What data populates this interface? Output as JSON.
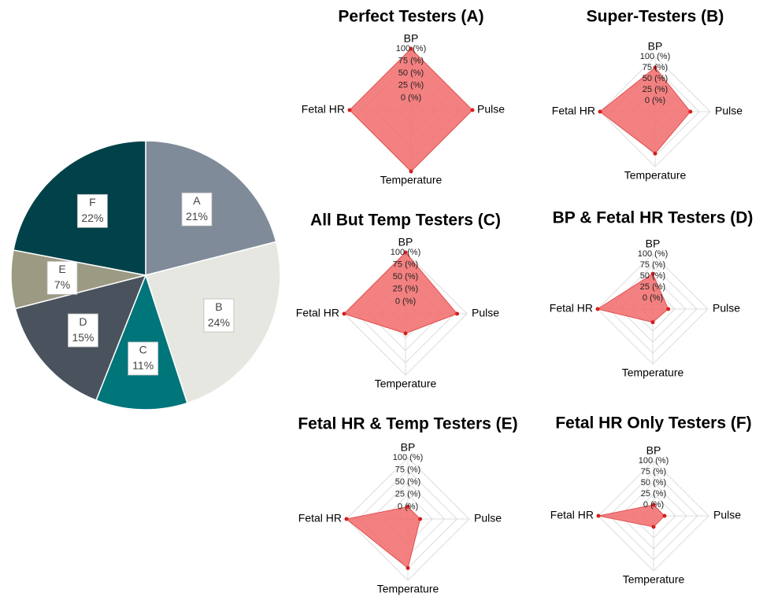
{
  "chart_data": [
    {
      "type": "pie",
      "categories": [
        "A",
        "B",
        "C",
        "D",
        "E",
        "F"
      ],
      "values": [
        21,
        24,
        11,
        15,
        7,
        22
      ],
      "value_labels": [
        "21%",
        "24%",
        "11%",
        "15%",
        "7%",
        "22%"
      ],
      "colors": [
        "#7f8b98",
        "#e7e7e2",
        "#00757a",
        "#4a535d",
        "#9b9a82",
        "#01424a"
      ]
    },
    {
      "type": "radar",
      "title": "Perfect Testers (A)",
      "categories": [
        "BP",
        "Pulse",
        "Temperature",
        "Fetal HR"
      ],
      "values": [
        100,
        100,
        100,
        100
      ],
      "color": "#f26b6b",
      "ylim": [
        -25,
        100
      ],
      "yticks": [
        {
          "value": 0,
          "label": "0 (%)"
        },
        {
          "value": 25,
          "label": "25 (%)"
        },
        {
          "value": 50,
          "label": "50 (%)"
        },
        {
          "value": 75,
          "label": "75 (%)"
        },
        {
          "value": 100,
          "label": "100 (%)"
        }
      ]
    },
    {
      "type": "radar",
      "title": "Super-Testers (B)",
      "categories": [
        "BP",
        "Pulse",
        "Temperature",
        "Fetal HR"
      ],
      "values": [
        75,
        55,
        70,
        100
      ],
      "color": "#f26b6b",
      "ylim": [
        -25,
        100
      ],
      "yticks": [
        {
          "value": 0,
          "label": "0 (%)"
        },
        {
          "value": 25,
          "label": "25 (%)"
        },
        {
          "value": 50,
          "label": "50 (%)"
        },
        {
          "value": 75,
          "label": "75 (%)"
        },
        {
          "value": 100,
          "label": "100 (%)"
        }
      ]
    },
    {
      "type": "radar",
      "title": "All But Temp Testers (C)",
      "categories": [
        "BP",
        "Pulse",
        "Temperature",
        "Fetal HR"
      ],
      "values": [
        100,
        80,
        15,
        100
      ],
      "color": "#f26b6b",
      "ylim": [
        -25,
        100
      ],
      "yticks": [
        {
          "value": 0,
          "label": "0 (%)"
        },
        {
          "value": 25,
          "label": "25 (%)"
        },
        {
          "value": 50,
          "label": "50 (%)"
        },
        {
          "value": 75,
          "label": "75 (%)"
        },
        {
          "value": 100,
          "label": "100 (%)"
        }
      ]
    },
    {
      "type": "radar",
      "title": "BP & Fetal HR Testers (D)",
      "categories": [
        "BP",
        "Pulse",
        "Temperature",
        "Fetal HR"
      ],
      "values": [
        55,
        10,
        5,
        100
      ],
      "color": "#f26b6b",
      "ylim": [
        -25,
        100
      ],
      "yticks": [
        {
          "value": 0,
          "label": "0 (%)"
        },
        {
          "value": 25,
          "label": "25 (%)"
        },
        {
          "value": 50,
          "label": "50 (%)"
        },
        {
          "value": 75,
          "label": "75 (%)"
        },
        {
          "value": 100,
          "label": "100 (%)"
        }
      ]
    },
    {
      "type": "radar",
      "title": "Fetal HR & Temp Testers (E)",
      "categories": [
        "BP",
        "Pulse",
        "Temperature",
        "Fetal HR"
      ],
      "values": [
        0,
        0,
        75,
        100
      ],
      "color": "#f26b6b",
      "ylim": [
        -25,
        100
      ],
      "yticks": [
        {
          "value": 0,
          "label": "0 (%)"
        },
        {
          "value": 25,
          "label": "25 (%)"
        },
        {
          "value": 50,
          "label": "50 (%)"
        },
        {
          "value": 75,
          "label": "75 (%)"
        },
        {
          "value": 100,
          "label": "100 (%)"
        }
      ]
    },
    {
      "type": "radar",
      "title": "Fetal HR Only Testers (F)",
      "categories": [
        "BP",
        "Pulse",
        "Temperature",
        "Fetal HR"
      ],
      "values": [
        0,
        0,
        0,
        100
      ],
      "color": "#f26b6b",
      "ylim": [
        -25,
        100
      ],
      "yticks": [
        {
          "value": 0,
          "label": "0 (%)"
        },
        {
          "value": 25,
          "label": "25 (%)"
        },
        {
          "value": 50,
          "label": "50 (%)"
        },
        {
          "value": 75,
          "label": "75 (%)"
        },
        {
          "value": 100,
          "label": "100 (%)"
        }
      ]
    }
  ]
}
